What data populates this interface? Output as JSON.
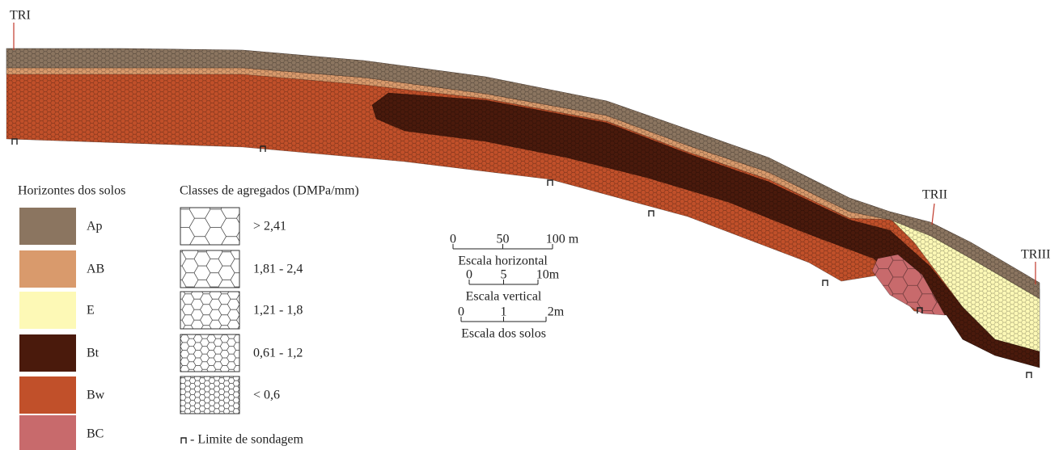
{
  "profiles": [
    {
      "label": "TRI"
    },
    {
      "label": "TRII"
    },
    {
      "label": "TRIII"
    }
  ],
  "legend": {
    "horizons": {
      "title": "Horizontes dos solos",
      "items": [
        {
          "label": "Ap",
          "color": "#8b7560"
        },
        {
          "label": "AB",
          "color": "#d99a6c"
        },
        {
          "label": "E",
          "color": "#fdf9b6"
        },
        {
          "label": "Bt",
          "color": "#4a1a0c"
        },
        {
          "label": "Bw",
          "color": "#c1502a"
        },
        {
          "label": "BC",
          "color": "#c86a6c"
        }
      ]
    },
    "aggregates": {
      "title": "Classes de agregados (DMPa/mm)",
      "items": [
        "> 2,41",
        "1,81 - 2,4",
        "1,21 - 1,8",
        "0,61 - 1,2",
        "< 0,6"
      ]
    },
    "probe_limit": "- Limite de sondagem"
  },
  "scales": [
    {
      "ticks": [
        "0",
        "50",
        "100 m"
      ],
      "label": "Escala horizontal"
    },
    {
      "ticks": [
        "0",
        "5",
        "10m"
      ],
      "label": "Escala vertical"
    },
    {
      "ticks": [
        "0",
        "1",
        "2m"
      ],
      "label": "Escala dos solos"
    }
  ]
}
